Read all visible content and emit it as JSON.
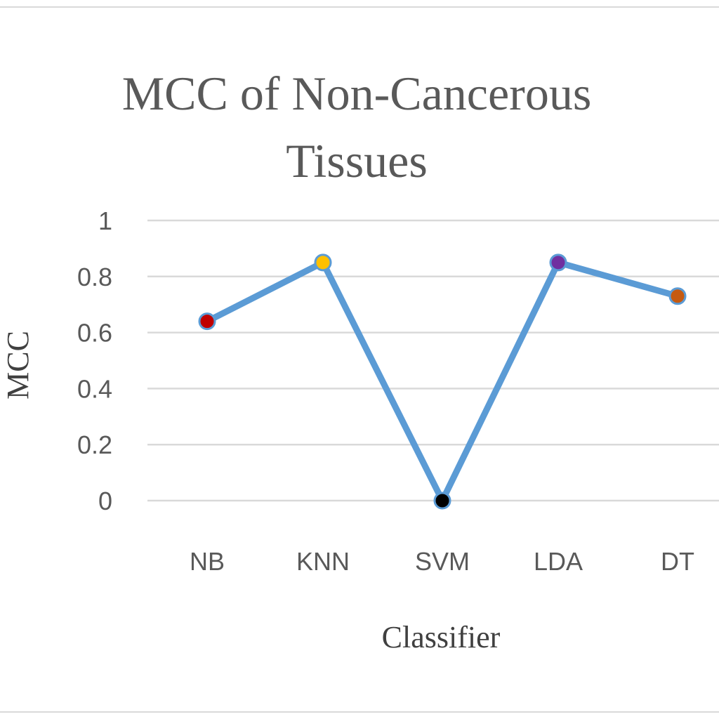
{
  "chart_data": {
    "type": "line",
    "title_lines": [
      "MCC of Non-Cancerous",
      "Tissues"
    ],
    "xlabel": "Classifier",
    "ylabel": "MCC",
    "categories": [
      "NB",
      "KNN",
      "SVM",
      "LDA",
      "DT"
    ],
    "series": [
      {
        "values": [
          0.64,
          0.85,
          0.0,
          0.85,
          0.73
        ],
        "line_color": "#5b9bd5",
        "marker_colors": [
          "#c00000",
          "#ffc000",
          "#000000",
          "#7030a0",
          "#c55a11"
        ]
      }
    ],
    "ylim": [
      0,
      1
    ],
    "yticks": [
      "0",
      "0.2",
      "0.4",
      "0.6",
      "0.8",
      "1"
    ],
    "grid": true,
    "legend": "none"
  }
}
